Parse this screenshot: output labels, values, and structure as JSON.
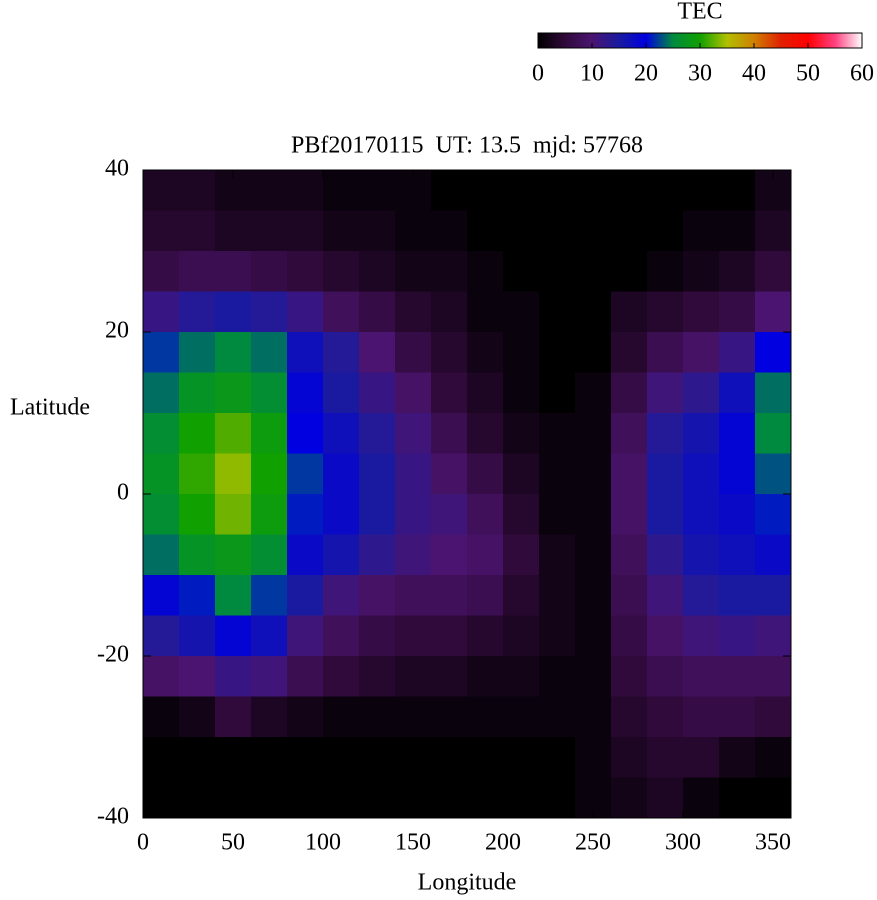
{
  "chart_data": {
    "type": "heatmap",
    "title": "PBf20170115  UT: 13.5  mjd: 57768",
    "x_label": "Longitude",
    "y_label": "Latitude",
    "colorbar_label": "TEC",
    "x": [
      10,
      30,
      50,
      70,
      90,
      110,
      130,
      150,
      170,
      190,
      210,
      230,
      250,
      270,
      290,
      310,
      330,
      350
    ],
    "y": [
      37.5,
      32.5,
      27.5,
      22.5,
      17.5,
      12.5,
      7.5,
      2.5,
      -2.5,
      -7.5,
      -12.5,
      -17.5,
      -22.5,
      -27.5,
      -32.5,
      -37.5
    ],
    "values": [
      [
        3,
        3,
        2,
        2,
        2,
        1,
        1,
        1,
        0,
        0,
        0,
        0,
        0,
        0,
        0,
        0,
        0,
        2
      ],
      [
        4,
        4,
        3,
        3,
        3,
        2,
        2,
        1,
        1,
        0,
        0,
        0,
        0,
        0,
        0,
        1,
        1,
        3
      ],
      [
        6,
        7,
        7,
        6,
        5,
        4,
        3,
        2,
        2,
        1,
        0,
        0,
        0,
        0,
        1,
        2,
        3,
        5
      ],
      [
        12,
        14,
        15,
        14,
        12,
        8,
        6,
        4,
        3,
        1,
        1,
        0,
        0,
        3,
        4,
        5,
        6,
        10
      ],
      [
        22,
        24,
        25,
        24,
        17,
        14,
        10,
        6,
        4,
        2,
        1,
        0,
        0,
        4,
        7,
        9,
        12,
        20
      ],
      [
        24,
        27,
        28,
        26,
        19,
        15,
        12,
        9,
        5,
        3,
        1,
        0,
        1,
        6,
        11,
        13,
        17,
        24
      ],
      [
        26,
        30,
        32,
        29,
        20,
        17,
        14,
        11,
        7,
        4,
        2,
        1,
        1,
        8,
        14,
        16,
        19,
        25
      ],
      [
        27,
        31,
        34,
        30,
        22,
        18,
        15,
        12,
        9,
        6,
        3,
        1,
        1,
        9,
        15,
        17,
        19,
        23
      ],
      [
        26,
        30,
        33,
        29,
        21,
        18,
        15,
        12,
        11,
        8,
        4,
        1,
        1,
        9,
        15,
        17,
        18,
        21
      ],
      [
        24,
        27,
        28,
        26,
        18,
        16,
        13,
        11,
        10,
        9,
        5,
        2,
        1,
        8,
        13,
        16,
        17,
        18
      ],
      [
        19,
        21,
        25,
        22,
        15,
        11,
        9,
        8,
        8,
        7,
        4,
        2,
        1,
        7,
        11,
        14,
        15,
        15
      ],
      [
        14,
        16,
        19,
        17,
        11,
        8,
        6,
        5,
        5,
        4,
        3,
        2,
        1,
        6,
        9,
        11,
        12,
        11
      ],
      [
        9,
        10,
        12,
        11,
        7,
        5,
        4,
        3,
        3,
        2,
        2,
        1,
        1,
        5,
        7,
        8,
        8,
        8
      ],
      [
        1,
        2,
        5,
        3,
        2,
        1,
        1,
        1,
        1,
        1,
        1,
        1,
        1,
        4,
        5,
        6,
        6,
        5
      ],
      [
        0,
        0,
        0,
        0,
        0,
        0,
        0,
        0,
        0,
        0,
        0,
        0,
        1,
        3,
        4,
        4,
        2,
        1
      ],
      [
        0,
        0,
        0,
        0,
        0,
        0,
        0,
        0,
        0,
        0,
        0,
        0,
        1,
        2,
        3,
        1,
        0,
        0
      ]
    ],
    "xlim": [
      0,
      360
    ],
    "xticks": [
      0,
      50,
      100,
      150,
      200,
      250,
      300,
      350
    ],
    "ylim": [
      -40,
      40
    ],
    "yticks": [
      -40,
      -20,
      0,
      20,
      40
    ],
    "clim": [
      0,
      60
    ],
    "cticks": [
      0,
      10,
      20,
      30,
      40,
      50,
      60
    ],
    "colormap": [
      "#000000",
      "#300a3a",
      "#4a1470",
      "#1a1aa0",
      "#0000e0",
      "#008a40",
      "#10a000",
      "#b0c000",
      "#d08000",
      "#e02000",
      "#ff0000",
      "#ff4080",
      "#ffffff"
    ]
  }
}
